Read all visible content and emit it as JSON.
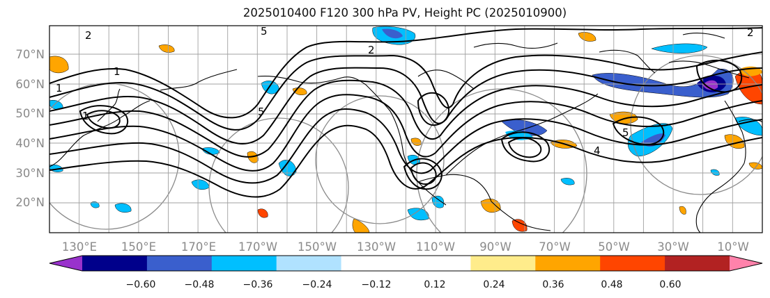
{
  "title": "2025010400 F120 300 hPa PV, Height PC (2025010900)",
  "lat_labels": [
    "70°N",
    "60°N",
    "50°N",
    "40°N",
    "30°N",
    "20°N"
  ],
  "lon_labels": [
    "130°E",
    "150°E",
    "170°E",
    "170°W",
    "150°W",
    "130°W",
    "110°W",
    "90°W",
    "70°W",
    "50°W",
    "30°W",
    "10°W"
  ],
  "colorbar": {
    "colors": [
      "#9932cc",
      "#00008b",
      "#3a5fcd",
      "#00bfff",
      "#b0e2ff",
      "#ffffff",
      "#ffffff",
      "#ffec8b",
      "#ffa500",
      "#ff4500",
      "#b22222",
      "#ff82ab"
    ],
    "tick_labels": [
      "−0.60",
      "−0.48",
      "−0.36",
      "−0.24",
      "−0.12",
      "0.12",
      "0.24",
      "0.36",
      "0.48",
      "0.60"
    ]
  },
  "contour_labels": [
    "2",
    "2",
    "1",
    "1",
    "5",
    "5",
    "4",
    "5",
    "2",
    "1"
  ],
  "field": {
    "lat_range": [
      "10°N",
      "80°N"
    ],
    "lon_range": [
      "120°E",
      "0°"
    ],
    "contour_color": "#000000",
    "coastline_color": "#000000",
    "grid_color": "#a0a0a0"
  }
}
